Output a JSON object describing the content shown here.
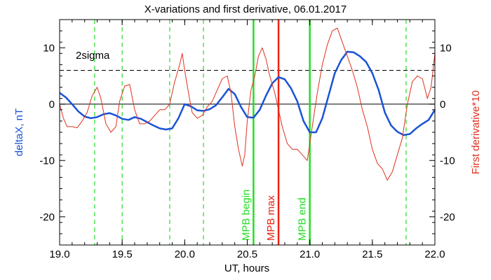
{
  "chart_data": {
    "type": "line",
    "title": "X-variations and first derivative, 06.01.2017",
    "xlabel": "UT, hours",
    "ylabel_left": "deltaX, nT",
    "ylabel_right": "First derivative*10",
    "xlim": [
      19.0,
      22.0
    ],
    "ylim": [
      -25,
      15
    ],
    "x_ticks": [
      "19.0",
      "19.5",
      "20.0",
      "20.5",
      "21.0",
      "21.5",
      "22.0"
    ],
    "y_ticks": [
      "-20",
      "-10",
      "0",
      "10"
    ],
    "grid": false,
    "colors": {
      "deltaX": "#1a52d6",
      "derivative": "#e0301e",
      "green": "#22dd22",
      "red": "#ee2211",
      "axis_label_left": "#1a52d6",
      "axis_label_right": "#e0301e",
      "threshold": "#000000"
    },
    "threshold": {
      "label": "2sigma",
      "value": 6
    },
    "dashed_green_lines": [
      19.28,
      19.5,
      19.88,
      20.15,
      21.77
    ],
    "markers": [
      {
        "label": "MPB begin",
        "x": 20.55,
        "color": "#22dd22"
      },
      {
        "label": "MPB max",
        "x": 20.75,
        "color": "#ee2211"
      },
      {
        "label": "MPB end",
        "x": 21.0,
        "color": "#22dd22"
      }
    ],
    "series": [
      {
        "key": "deltaX",
        "x": [
          19.0,
          19.05,
          19.1,
          19.15,
          19.2,
          19.25,
          19.3,
          19.35,
          19.4,
          19.45,
          19.5,
          19.55,
          19.6,
          19.65,
          19.7,
          19.75,
          19.8,
          19.85,
          19.9,
          19.95,
          20.0,
          20.05,
          20.1,
          20.15,
          20.2,
          20.25,
          20.3,
          20.35,
          20.4,
          20.45,
          20.5,
          20.55,
          20.6,
          20.65,
          20.7,
          20.75,
          20.8,
          20.85,
          20.9,
          20.95,
          21.0,
          21.05,
          21.1,
          21.15,
          21.2,
          21.25,
          21.3,
          21.35,
          21.4,
          21.45,
          21.5,
          21.55,
          21.6,
          21.65,
          21.7,
          21.75,
          21.8,
          21.85,
          21.9,
          21.95,
          22.0
        ],
        "y": [
          2.0,
          1.2,
          0.0,
          -1.3,
          -2.2,
          -2.5,
          -2.3,
          -1.8,
          -1.6,
          -2.0,
          -2.6,
          -2.8,
          -2.3,
          -2.6,
          -3.2,
          -3.8,
          -4.3,
          -4.5,
          -4.3,
          -2.5,
          0.0,
          -0.4,
          -1.1,
          -1.2,
          -0.9,
          -0.2,
          1.2,
          2.7,
          1.8,
          -0.5,
          -2.3,
          -2.4,
          -1.0,
          1.5,
          3.7,
          4.8,
          4.4,
          2.8,
          0.5,
          -3.0,
          -5.0,
          -5.0,
          -2.5,
          1.5,
          5.5,
          7.8,
          9.3,
          9.2,
          8.5,
          7.5,
          5.5,
          2.5,
          -1.5,
          -3.8,
          -4.9,
          -5.5,
          -5.3,
          -4.3,
          -3.5,
          -2.8,
          -1.0
        ]
      },
      {
        "key": "derivative",
        "x": [
          19.0,
          19.03,
          19.06,
          19.1,
          19.14,
          19.18,
          19.22,
          19.26,
          19.3,
          19.33,
          19.37,
          19.41,
          19.45,
          19.48,
          19.52,
          19.56,
          19.6,
          19.64,
          19.68,
          19.72,
          19.76,
          19.8,
          19.84,
          19.88,
          19.92,
          19.96,
          19.98,
          20.0,
          20.03,
          20.06,
          20.1,
          20.14,
          20.18,
          20.22,
          20.26,
          20.3,
          20.34,
          20.37,
          20.4,
          20.43,
          20.46,
          20.48,
          20.5,
          20.53,
          20.56,
          20.59,
          20.62,
          20.65,
          20.68,
          20.72,
          20.75,
          20.78,
          20.82,
          20.86,
          20.9,
          20.94,
          20.98,
          21.02,
          21.06,
          21.1,
          21.14,
          21.18,
          21.22,
          21.26,
          21.3,
          21.34,
          21.38,
          21.42,
          21.46,
          21.5,
          21.54,
          21.58,
          21.62,
          21.66,
          21.7,
          21.74,
          21.78,
          21.82,
          21.86,
          21.9,
          21.94,
          21.97,
          22.0
        ],
        "y": [
          0.0,
          -2.5,
          -4.0,
          -4.0,
          -4.2,
          -3.0,
          -1.5,
          1.5,
          3.0,
          1.0,
          -3.5,
          -5.0,
          -4.0,
          0.5,
          3.2,
          3.5,
          -1.0,
          -3.5,
          -3.5,
          -3.0,
          -2.0,
          -1.0,
          -1.0,
          0.0,
          4.0,
          7.0,
          9.0,
          6.0,
          2.0,
          -1.5,
          -2.5,
          -2.0,
          -0.5,
          0.5,
          2.5,
          4.5,
          5.0,
          2.0,
          -4.0,
          -8.0,
          -11.0,
          -9.0,
          -3.0,
          2.5,
          5.0,
          8.5,
          10.0,
          8.0,
          5.0,
          2.0,
          -1.0,
          -4.0,
          -7.0,
          -8.0,
          -8.0,
          -9.0,
          -10.0,
          -4.0,
          2.0,
          7.0,
          10.5,
          13.0,
          13.5,
          11.0,
          8.5,
          6.0,
          3.0,
          -1.0,
          -4.0,
          -8.0,
          -10.5,
          -11.5,
          -13.5,
          -12.0,
          -9.0,
          -6.0,
          0.0,
          4.0,
          5.0,
          4.5,
          1.0,
          3.0,
          9.0
        ]
      }
    ]
  }
}
